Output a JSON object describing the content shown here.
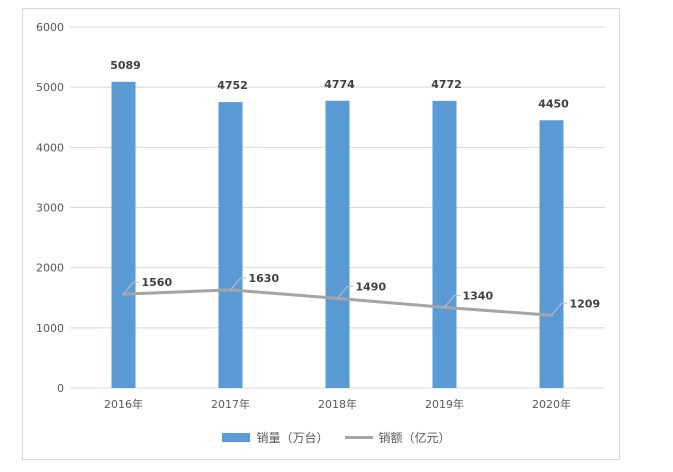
{
  "colors": {
    "bar": "#5b9bd5",
    "line": "#a5a5a5",
    "grid": "#d9d9d9",
    "text": "#595959",
    "label": "#404040",
    "leader": "#bfbfbf"
  },
  "chart_data": {
    "type": "bar",
    "categories": [
      "2016年",
      "2017年",
      "2018年",
      "2019年",
      "2020年"
    ],
    "ylim": [
      0,
      6000
    ],
    "yticks": [
      0,
      1000,
      2000,
      3000,
      4000,
      5000,
      6000
    ],
    "grid": true,
    "legend_position": "bottom",
    "series": [
      {
        "name": "销量（万台）",
        "type": "bar",
        "values": [
          5089,
          4752,
          4774,
          4772,
          4450
        ]
      },
      {
        "name": "销额（亿元）",
        "type": "line",
        "values": [
          1560,
          1630,
          1490,
          1340,
          1209
        ]
      }
    ]
  }
}
